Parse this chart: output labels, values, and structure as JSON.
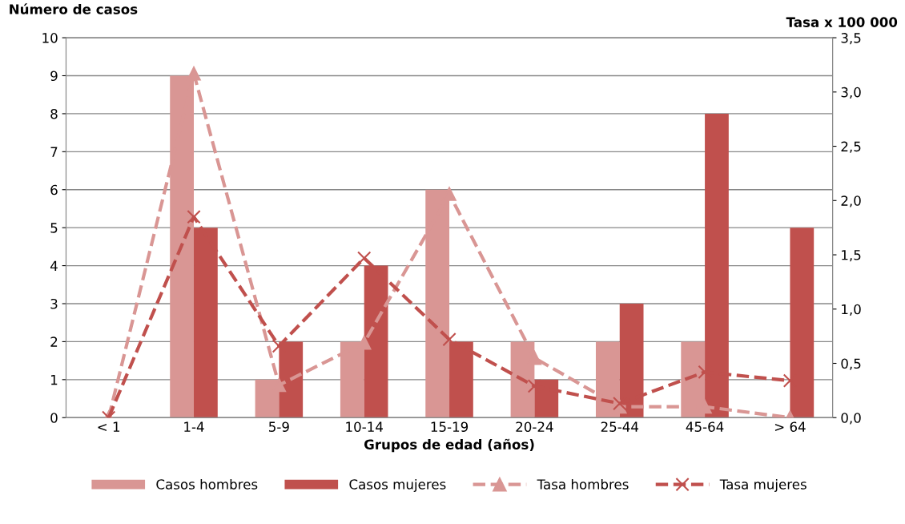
{
  "chart_data": {
    "type": "bar",
    "xlabel": "Grupos de edad (años)",
    "ylabel": "Número de casos",
    "y2label": "Tasa x 100 000",
    "categories": [
      "< 1",
      "1-4",
      "5-9",
      "10-14",
      "15-19",
      "20-24",
      "25-44",
      "45-64",
      "> 64"
    ],
    "series": [
      {
        "name": "Casos hombres",
        "color": "#d99694",
        "values": [
          0,
          9,
          1,
          2,
          6,
          2,
          2,
          2,
          0
        ]
      },
      {
        "name": "Casos mujeres",
        "color": "#c0504d",
        "values": [
          0,
          5,
          2,
          4,
          2,
          1,
          3,
          8,
          5
        ]
      },
      {
        "name": "Tasa hombres",
        "type": "line",
        "axis": "y2",
        "color": "#d99694",
        "marker": "triangle",
        "line_style": "dashed",
        "values": [
          0,
          3.17,
          0.3,
          0.69,
          2.06,
          0.55,
          0.1,
          0.1,
          0
        ]
      },
      {
        "name": "Tasa mujeres",
        "type": "line",
        "axis": "y2",
        "color": "#c0504d",
        "marker": "cross",
        "line_style": "dashed",
        "values": [
          0,
          1.85,
          0.66,
          1.47,
          0.72,
          0.29,
          0.13,
          0.42,
          0.34
        ]
      }
    ],
    "ylim": [
      0,
      10
    ],
    "yticks": [
      0,
      1,
      2,
      3,
      4,
      5,
      6,
      7,
      8,
      9,
      10
    ],
    "y2lim": [
      0,
      3.5
    ],
    "y2ticks": [
      {
        "value": 0,
        "label": "0,0"
      },
      {
        "value": 0.5,
        "label": "0,5"
      },
      {
        "value": 1,
        "label": "1,0"
      },
      {
        "value": 1.5,
        "label": "1,5"
      },
      {
        "value": 2,
        "label": "2,0"
      },
      {
        "value": 2.5,
        "label": "2,5"
      },
      {
        "value": 3,
        "label": "3,0"
      },
      {
        "value": 3.5,
        "label": "3,5"
      }
    ],
    "grid": "y",
    "legend": "bottom"
  }
}
